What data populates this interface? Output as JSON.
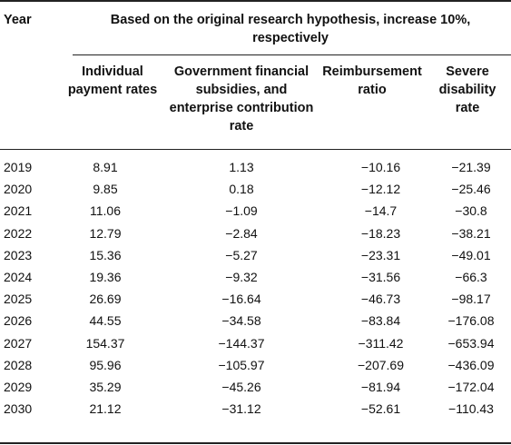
{
  "table": {
    "year_header": "Year",
    "group_header": "Based on the original research hypothesis, increase 10%, respectively",
    "columns": [
      {
        "lines": [
          "Individual",
          "payment rates"
        ]
      },
      {
        "lines": [
          "Government financial",
          "subsidies, and",
          "enterprise contribution",
          "rate"
        ]
      },
      {
        "lines": [
          "Reimbursement",
          "ratio"
        ]
      },
      {
        "lines": [
          "Severe",
          "disability",
          "rate"
        ]
      }
    ],
    "rows": [
      {
        "year": "2019",
        "values": [
          "8.91",
          "1.13",
          "−10.16",
          "−21.39"
        ]
      },
      {
        "year": "2020",
        "values": [
          "9.85",
          "0.18",
          "−12.12",
          "−25.46"
        ]
      },
      {
        "year": "2021",
        "values": [
          "11.06",
          "−1.09",
          "−14.7",
          "−30.8"
        ]
      },
      {
        "year": "2022",
        "values": [
          "12.79",
          "−2.84",
          "−18.23",
          "−38.21"
        ]
      },
      {
        "year": "2023",
        "values": [
          "15.36",
          "−5.27",
          "−23.31",
          "−49.01"
        ]
      },
      {
        "year": "2024",
        "values": [
          "19.36",
          "−9.32",
          "−31.56",
          "−66.3"
        ]
      },
      {
        "year": "2025",
        "values": [
          "26.69",
          "−16.64",
          "−46.73",
          "−98.17"
        ]
      },
      {
        "year": "2026",
        "values": [
          "44.55",
          "−34.58",
          "−83.84",
          "−176.08"
        ]
      },
      {
        "year": "2027",
        "values": [
          "154.37",
          "−144.37",
          "−311.42",
          "−653.94"
        ]
      },
      {
        "year": "2028",
        "values": [
          "95.96",
          "−105.97",
          "−207.69",
          "−436.09"
        ]
      },
      {
        "year": "2029",
        "values": [
          "35.29",
          "−45.26",
          "−81.94",
          "−172.04"
        ]
      },
      {
        "year": "2030",
        "values": [
          "21.12",
          "−31.12",
          "−52.61",
          "−110.43"
        ]
      }
    ]
  }
}
